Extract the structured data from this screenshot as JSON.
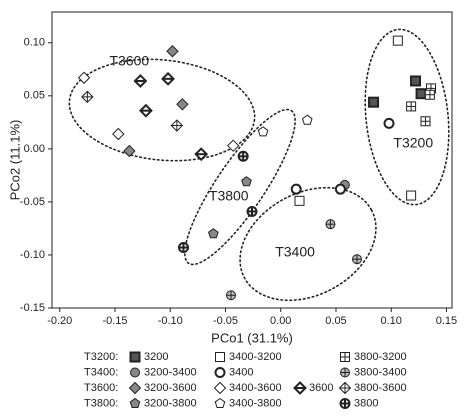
{
  "chart_data": {
    "type": "scatter",
    "x_label": "PCo1 (31.1%)",
    "y_label": "PCo2 (11.1%)",
    "xlim": [
      -0.207,
      0.155
    ],
    "ylim": [
      -0.15,
      0.129
    ],
    "xticks": [
      {
        "value": -0.2,
        "label": "-0.20"
      },
      -0.15,
      {
        "value": -0.1,
        "label": "-0.10"
      },
      -0.05,
      {
        "value": 0,
        "label": "0.00"
      },
      0.05,
      {
        "value": 0.1,
        "label": "0.10"
      },
      0.15
    ],
    "yticks": [
      {
        "value": -0.15,
        "label": "-0.15"
      },
      {
        "value": -0.1,
        "label": "-0.10"
      },
      -0.05,
      {
        "value": 0,
        "label": "0.00"
      },
      0.05,
      {
        "value": 0.1,
        "label": "0.10"
      }
    ],
    "annotations": [
      {
        "text": "T3600",
        "x": -0.155,
        "y": 0.082
      },
      {
        "text": "T3800",
        "x": -0.065,
        "y": -0.045
      },
      {
        "text": "T3400",
        "x": -0.005,
        "y": -0.098
      },
      {
        "text": "T3200",
        "x": 0.102,
        "y": 0.005
      }
    ],
    "groups": [
      {
        "label": "T3200:",
        "series": [
          {
            "name": "3200",
            "marker": "square",
            "color": "#555555",
            "decor": "none",
            "bold": true,
            "x": [
              0.084,
              0.122,
              0.127
            ],
            "y": [
              0.044,
              0.064,
              0.052
            ]
          },
          {
            "name": "3400-3200",
            "marker": "square",
            "color": "#ffffff",
            "decor": "none",
            "bold": false,
            "x": [
              0.106,
              0.118,
              0.017
            ],
            "y": [
              0.102,
              -0.044,
              -0.049
            ]
          },
          {
            "name": "3800-3200",
            "marker": "square",
            "color": "#ffffff",
            "decor": "plus",
            "bold": false,
            "x": [
              0.118,
              0.136,
              0.131,
              0.135
            ],
            "y": [
              0.04,
              0.057,
              0.026,
              0.051
            ]
          }
        ]
      },
      {
        "label": "T3400:",
        "series": [
          {
            "name": "3200-3400",
            "marker": "circle",
            "color": "#888888",
            "decor": "none",
            "bold": false,
            "x": [
              0.058
            ],
            "y": [
              -0.034
            ]
          },
          {
            "name": "3400",
            "marker": "circle",
            "color": "#ffffff",
            "decor": "none",
            "bold": true,
            "x": [
              0.098,
              0.014,
              0.054
            ],
            "y": [
              0.024,
              -0.038,
              -0.038
            ]
          },
          {
            "name": "3800-3400",
            "marker": "circle",
            "color": "#bbbbbb",
            "decor": "plus",
            "bold": false,
            "x": [
              0.045,
              0.069,
              -0.045
            ],
            "y": [
              -0.071,
              -0.104,
              -0.138
            ]
          }
        ]
      },
      {
        "label": "T3600:",
        "series": [
          {
            "name": "3200-3600",
            "marker": "diamond",
            "color": "#888888",
            "decor": "none",
            "bold": false,
            "x": [
              -0.098,
              -0.089,
              -0.137
            ],
            "y": [
              0.092,
              0.042,
              -0.002
            ]
          },
          {
            "name": "3400-3600",
            "marker": "diamond",
            "color": "#ffffff",
            "decor": "none",
            "bold": false,
            "x": [
              -0.178,
              -0.147,
              -0.043
            ],
            "y": [
              0.067,
              0.014,
              0.003
            ]
          },
          {
            "name": "3600",
            "marker": "diamond",
            "color": "#ffffff",
            "decor": "line",
            "bold": true,
            "x": [
              -0.127,
              -0.102,
              -0.122,
              -0.072
            ],
            "y": [
              0.064,
              0.066,
              0.036,
              -0.005
            ]
          },
          {
            "name": "3800-3600",
            "marker": "diamond",
            "color": "#ffffff",
            "decor": "plus",
            "bold": false,
            "x": [
              -0.175,
              -0.094
            ],
            "y": [
              0.049,
              0.022
            ]
          }
        ]
      },
      {
        "label": "T3800:",
        "series": [
          {
            "name": "3200-3800",
            "marker": "pentagon",
            "color": "#888888",
            "decor": "none",
            "bold": false,
            "x": [
              -0.031,
              -0.061
            ],
            "y": [
              -0.031,
              -0.08
            ]
          },
          {
            "name": "3400-3800",
            "marker": "pentagon",
            "color": "#ffffff",
            "decor": "none",
            "bold": false,
            "x": [
              -0.016,
              0.024
            ],
            "y": [
              0.016,
              0.027
            ]
          },
          {
            "name": "3800",
            "marker": "circle",
            "color": "#ffffff",
            "decor": "plus",
            "bold": true,
            "x": [
              -0.034,
              -0.026,
              -0.088
            ],
            "y": [
              -0.007,
              -0.059,
              -0.093
            ]
          }
        ]
      }
    ]
  }
}
